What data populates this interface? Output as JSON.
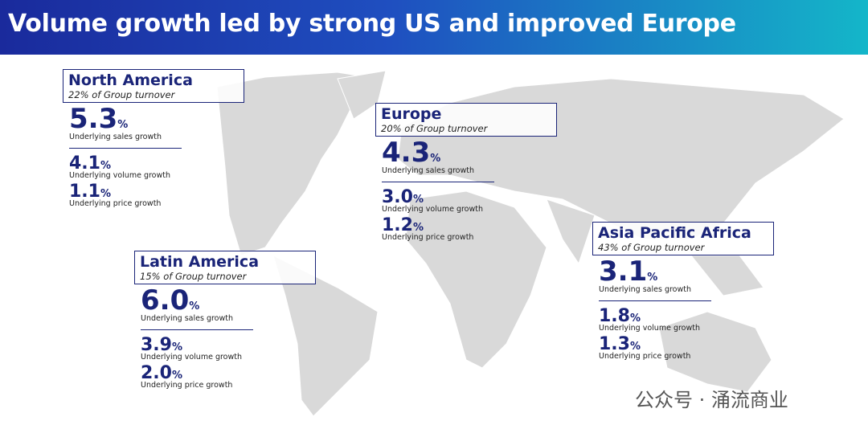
{
  "header": {
    "title": "Volume growth led by strong US and improved Europe"
  },
  "regions": [
    {
      "name": "North America",
      "share": "22% of Group turnover",
      "metrics": [
        {
          "value": "5.3",
          "unit": "%",
          "label": "Underlying sales growth"
        },
        {
          "value": "4.1",
          "unit": "%",
          "label": "Underlying volume growth"
        },
        {
          "value": "1.1",
          "unit": "%",
          "label": "Underlying price growth"
        }
      ]
    },
    {
      "name": "Europe",
      "share": "20% of Group turnover",
      "metrics": [
        {
          "value": "4.3",
          "unit": "%",
          "label": "Underlying sales growth"
        },
        {
          "value": "3.0",
          "unit": "%",
          "label": "Underlying volume growth"
        },
        {
          "value": "1.2",
          "unit": "%",
          "label": "Underlying price growth"
        }
      ]
    },
    {
      "name": "Latin America",
      "share": "15% of Group turnover",
      "metrics": [
        {
          "value": "6.0",
          "unit": "%",
          "label": "Underlying sales growth"
        },
        {
          "value": "3.9",
          "unit": "%",
          "label": "Underlying volume growth"
        },
        {
          "value": "2.0",
          "unit": "%",
          "label": "Underlying price growth"
        }
      ]
    },
    {
      "name": "Asia Pacific Africa",
      "share": "43% of Group turnover",
      "metrics": [
        {
          "value": "3.1",
          "unit": "%",
          "label": "Underlying sales growth"
        },
        {
          "value": "1.8",
          "unit": "%",
          "label": "Underlying volume growth"
        },
        {
          "value": "1.3",
          "unit": "%",
          "label": "Underlying price growth"
        }
      ]
    }
  ],
  "watermark": "公众号 · 涌流商业"
}
